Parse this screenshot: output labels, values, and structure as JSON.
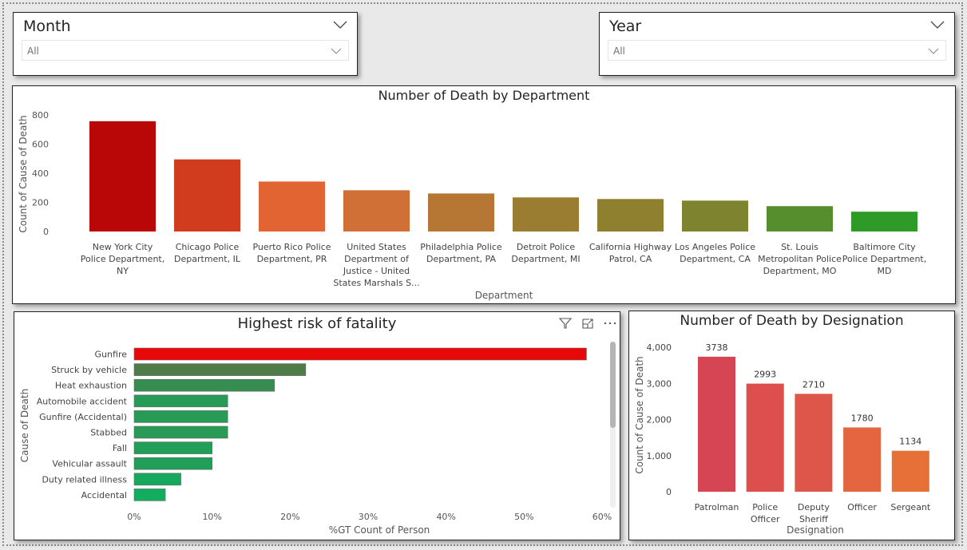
{
  "slicers": {
    "month": {
      "title": "Month",
      "value": "All"
    },
    "year": {
      "title": "Year",
      "value": "All"
    }
  },
  "visual_header_icons": [
    "filter-icon",
    "focus-mode-icon",
    "more-options-icon"
  ],
  "chart_data": [
    {
      "id": "department",
      "type": "bar",
      "title": "Number of Death by Department",
      "xlabel": "Department",
      "ylabel": "Count of Cause of Death",
      "ylim": [
        0,
        800
      ],
      "yticks": [
        0,
        200,
        400,
        600,
        800
      ],
      "ytick_labels": [
        "0",
        "200",
        "400",
        "600",
        "800"
      ],
      "grid": false,
      "categories": [
        [
          "New York City",
          "Police Department,",
          "NY"
        ],
        [
          "Chicago Police",
          "Department, IL"
        ],
        [
          "Puerto Rico Police",
          "Department, PR"
        ],
        [
          "United States",
          "Department of",
          "Justice - United",
          "States Marshals S..."
        ],
        [
          "Philadelphia Police",
          "Department, PA"
        ],
        [
          "Detroit Police",
          "Department, MI"
        ],
        [
          "California Highway",
          "Patrol, CA"
        ],
        [
          "Los Angeles Police",
          "Department, CA"
        ],
        [
          "St. Louis",
          "Metropolitan Police",
          "Department, MO"
        ],
        [
          "Baltimore City",
          "Police Department,",
          "MD"
        ]
      ],
      "values": [
        757,
        495,
        343,
        283,
        261,
        234,
        223,
        212,
        174,
        136
      ],
      "colors": [
        "#b90606",
        "#d13c1f",
        "#e36433",
        "#d07036",
        "#b57733",
        "#9a7d30",
        "#8e802e",
        "#7d832e",
        "#568e2e",
        "#2e9b28"
      ]
    },
    {
      "id": "fatality",
      "type": "bar",
      "orientation": "horizontal",
      "title": "Highest risk of fatality",
      "xlabel": "%GT Count of Person",
      "ylabel": "Cause of Death",
      "xlim": [
        0,
        60
      ],
      "xticks": [
        0,
        10,
        20,
        30,
        40,
        50,
        60
      ],
      "xtick_labels": [
        "0%",
        "10%",
        "20%",
        "30%",
        "40%",
        "50%",
        "60%"
      ],
      "grid": false,
      "categories": [
        "Gunfire",
        "Struck by vehicle",
        "Heat exhaustion",
        "Automobile accident",
        "Gunfire (Accidental)",
        "Stabbed",
        "Fall",
        "Vehicular assault",
        "Duty related illness",
        "Accidental"
      ],
      "values": [
        58,
        22,
        18,
        12,
        12,
        12,
        10,
        10,
        6,
        4
      ],
      "colors": [
        "#e80808",
        "#4e7b48",
        "#378d50",
        "#279a56",
        "#279a56",
        "#279a56",
        "#219e57",
        "#219e57",
        "#16a85c",
        "#12ad5e"
      ]
    },
    {
      "id": "designation",
      "type": "bar",
      "title": "Number of Death by Designation",
      "xlabel": "Designation",
      "ylabel": "Count of Cause of Death",
      "ylim": [
        0,
        4000
      ],
      "yticks": [
        0,
        1000,
        2000,
        3000,
        4000
      ],
      "ytick_labels": [
        "0",
        "1,000",
        "2,000",
        "3,000",
        "4,000"
      ],
      "grid": false,
      "categories": [
        [
          "Patrolman"
        ],
        [
          "Police",
          "Officer"
        ],
        [
          "Deputy",
          "Sheriff"
        ],
        [
          "Officer"
        ],
        [
          "Sergeant"
        ]
      ],
      "values": [
        3738,
        2993,
        2710,
        1780,
        1134
      ],
      "data_labels": [
        "3738",
        "2993",
        "2710",
        "1780",
        "1134"
      ],
      "colors": [
        "#d64553",
        "#dc4f4c",
        "#dd5649",
        "#e36640",
        "#e77038"
      ]
    }
  ]
}
